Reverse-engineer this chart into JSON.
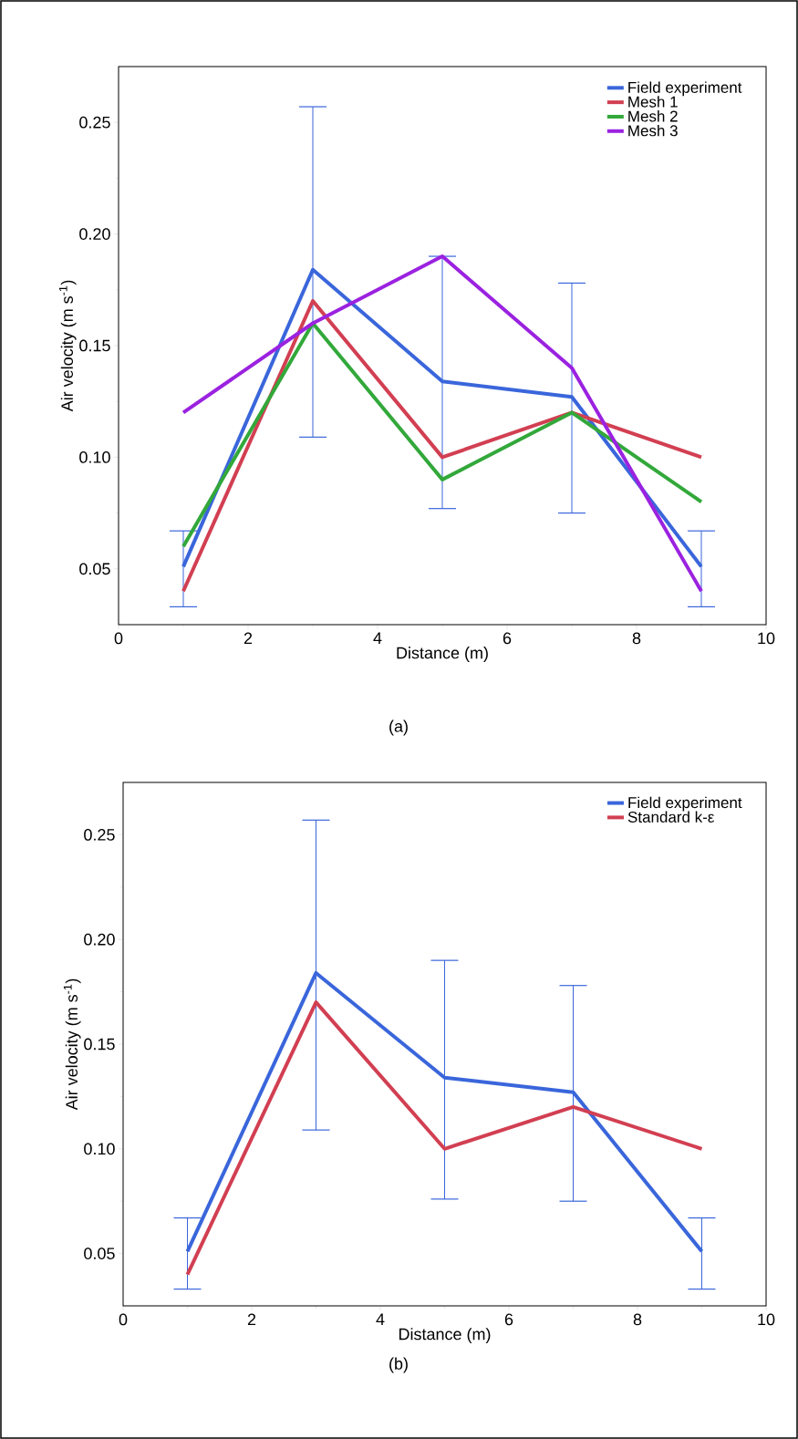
{
  "chart_data": [
    {
      "type": "line",
      "xlabel": "Distance (m)",
      "ylabel": "Air velocity (m s$^{-1}$)",
      "annotations": [
        "(a)"
      ],
      "xlim": [
        0,
        10
      ],
      "ylim": [
        0.025,
        0.275
      ],
      "xticks": [
        0,
        2,
        4,
        6,
        8,
        10
      ],
      "yticks": [
        {
          "value": 0.05,
          "label": "0.05"
        },
        {
          "value": 0.1,
          "label": "0.10"
        },
        {
          "value": 0.15,
          "label": "0.15"
        },
        {
          "value": 0.2,
          "label": "0.20"
        },
        {
          "value": 0.25,
          "label": "0.25"
        }
      ],
      "legend": "top right",
      "grid": false,
      "x": [
        1,
        3,
        5,
        7,
        9
      ],
      "series": [
        {
          "name": "Field experiment",
          "color": "#3a66db",
          "values": [
            0.051,
            0.184,
            0.134,
            0.127,
            0.051
          ],
          "errors": [
            [
              0.033,
              0.067
            ],
            [
              0.109,
              0.257
            ],
            [
              0.077,
              0.19
            ],
            [
              0.075,
              0.178
            ],
            [
              0.033,
              0.067
            ]
          ]
        },
        {
          "name": "Mesh 1",
          "color": "#d23f52",
          "values": [
            0.04,
            0.17,
            0.1,
            0.12,
            0.1
          ]
        },
        {
          "name": "Mesh 2",
          "color": "#32a83a",
          "values": [
            0.06,
            0.16,
            0.09,
            0.12,
            0.08
          ]
        },
        {
          "name": "Mesh 3",
          "color": "#9b22e0",
          "values": [
            0.12,
            0.16,
            0.19,
            0.14,
            0.04
          ]
        }
      ]
    },
    {
      "type": "line",
      "xlabel": "Distance (m)",
      "ylabel": "Air velocity (m s$^{-1}$)",
      "annotations": [
        "(b)"
      ],
      "xlim": [
        0,
        10
      ],
      "ylim": [
        0.025,
        0.275
      ],
      "xticks": [
        0,
        2,
        4,
        6,
        8,
        10
      ],
      "yticks": [
        {
          "value": 0.05,
          "label": "0.05"
        },
        {
          "value": 0.1,
          "label": "0.10"
        },
        {
          "value": 0.15,
          "label": "0.15"
        },
        {
          "value": 0.2,
          "label": "0.20"
        },
        {
          "value": 0.25,
          "label": "0.25"
        }
      ],
      "legend": "top right",
      "grid": false,
      "x": [
        1,
        3,
        5,
        7,
        9
      ],
      "series": [
        {
          "name": "Field experiment",
          "color": "#3a66db",
          "values": [
            0.051,
            0.184,
            0.134,
            0.127,
            0.051
          ],
          "errors": [
            [
              0.033,
              0.067
            ],
            [
              0.109,
              0.257
            ],
            [
              0.076,
              0.19
            ],
            [
              0.075,
              0.178
            ],
            [
              0.033,
              0.067
            ]
          ]
        },
        {
          "name": "Standard k-ε",
          "color": "#d23f52",
          "values": [
            0.04,
            0.17,
            0.1,
            0.12,
            0.1
          ]
        }
      ]
    }
  ]
}
